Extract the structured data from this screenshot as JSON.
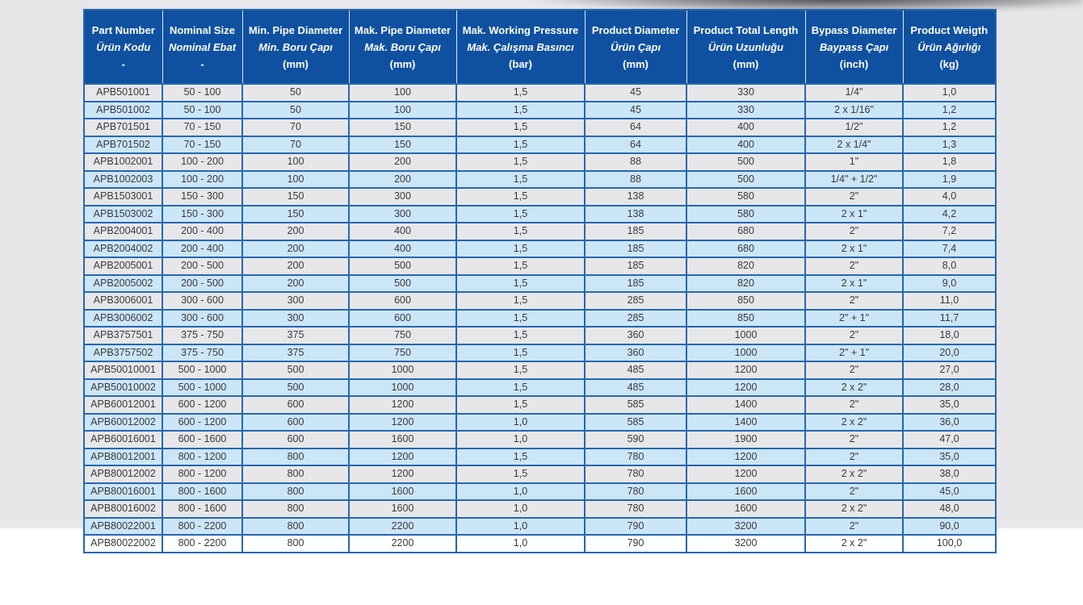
{
  "page": {
    "background_gray": "#e7e7e9",
    "background_white": "#ffffff"
  },
  "table": {
    "colors": {
      "header_bg": "#0f51a0",
      "header_text": "#ffffff",
      "border_blue": "#2767b1",
      "row_alt_blue": "#cbe6f7",
      "cell_text": "#3a3a3c"
    },
    "columns": [
      {
        "key": "part-number",
        "en": "Part Number",
        "tr": "Ürün Kodu",
        "unit": "-"
      },
      {
        "key": "nominal-size",
        "en": "Nominal Size",
        "tr": "Nominal Ebat",
        "unit": "-"
      },
      {
        "key": "min-pipe-diameter",
        "en": "Min. Pipe Diameter",
        "tr": "Min. Boru Çapı",
        "unit": "(mm)"
      },
      {
        "key": "max-pipe-diameter",
        "en": "Mak. Pipe Diameter",
        "tr": "Mak. Boru Çapı",
        "unit": "(mm)"
      },
      {
        "key": "max-working-pressure",
        "en": "Mak. Working Pressure",
        "tr": "Mak. Çalışma Basıncı",
        "unit": "(bar)"
      },
      {
        "key": "product-diameter",
        "en": "Product Diameter",
        "tr": "Ürün Çapı",
        "unit": "(mm)"
      },
      {
        "key": "product-total-length",
        "en": "Product Total Length",
        "tr": "Ürün Uzunluğu",
        "unit": "(mm)"
      },
      {
        "key": "bypass-diameter",
        "en": "Bypass Diameter",
        "tr": "Baypass Çapı",
        "unit": "(inch)"
      },
      {
        "key": "product-weight",
        "en": "Product Weigth",
        "tr": "Ürün Ağırlığı",
        "unit": "(kg)"
      }
    ],
    "rows": [
      [
        "APB501001",
        "50 - 100",
        "50",
        "100",
        "1,5",
        "45",
        "330",
        "1/4\"",
        "1,0"
      ],
      [
        "APB501002",
        "50 - 100",
        "50",
        "100",
        "1,5",
        "45",
        "330",
        "2 x 1/16\"",
        "1,2"
      ],
      [
        "APB701501",
        "70 - 150",
        "70",
        "150",
        "1,5",
        "64",
        "400",
        "1/2\"",
        "1,2"
      ],
      [
        "APB701502",
        "70 - 150",
        "70",
        "150",
        "1,5",
        "64",
        "400",
        "2 x 1/4\"",
        "1,3"
      ],
      [
        "APB1002001",
        "100 - 200",
        "100",
        "200",
        "1,5",
        "88",
        "500",
        "1\"",
        "1,8"
      ],
      [
        "APB1002003",
        "100 - 200",
        "100",
        "200",
        "1,5",
        "88",
        "500",
        "1/4\" + 1/2\"",
        "1,9"
      ],
      [
        "APB1503001",
        "150 - 300",
        "150",
        "300",
        "1,5",
        "138",
        "580",
        "2\"",
        "4,0"
      ],
      [
        "APB1503002",
        "150 - 300",
        "150",
        "300",
        "1,5",
        "138",
        "580",
        "2 x 1\"",
        "4,2"
      ],
      [
        "APB2004001",
        "200 - 400",
        "200",
        "400",
        "1,5",
        "185",
        "680",
        "2\"",
        "7,2"
      ],
      [
        "APB2004002",
        "200 - 400",
        "200",
        "400",
        "1,5",
        "185",
        "680",
        "2 x 1\"",
        "7,4"
      ],
      [
        "APB2005001",
        "200 - 500",
        "200",
        "500",
        "1,5",
        "185",
        "820",
        "2\"",
        "8,0"
      ],
      [
        "APB2005002",
        "200 - 500",
        "200",
        "500",
        "1,5",
        "185",
        "820",
        "2 x 1\"",
        "9,0"
      ],
      [
        "APB3006001",
        "300 - 600",
        "300",
        "600",
        "1,5",
        "285",
        "850",
        "2\"",
        "11,0"
      ],
      [
        "APB3006002",
        "300 - 600",
        "300",
        "600",
        "1,5",
        "285",
        "850",
        "2\" + 1\"",
        "11,7"
      ],
      [
        "APB3757501",
        "375 - 750",
        "375",
        "750",
        "1,5",
        "360",
        "1000",
        "2\"",
        "18,0"
      ],
      [
        "APB3757502",
        "375 - 750",
        "375",
        "750",
        "1,5",
        "360",
        "1000",
        "2\" + 1\"",
        "20,0"
      ],
      [
        "APB50010001",
        "500 - 1000",
        "500",
        "1000",
        "1,5",
        "485",
        "1200",
        "2\"",
        "27,0"
      ],
      [
        "APB50010002",
        "500 - 1000",
        "500",
        "1000",
        "1,5",
        "485",
        "1200",
        "2 x 2\"",
        "28,0"
      ],
      [
        "APB60012001",
        "600 - 1200",
        "600",
        "1200",
        "1,5",
        "585",
        "1400",
        "2\"",
        "35,0"
      ],
      [
        "APB60012002",
        "600 - 1200",
        "600",
        "1200",
        "1,0",
        "585",
        "1400",
        "2 x 2\"",
        "36,0"
      ],
      [
        "APB60016001",
        "600 - 1600",
        "600",
        "1600",
        "1,0",
        "590",
        "1900",
        "2\"",
        "47,0"
      ],
      [
        "APB80012001",
        "800 - 1200",
        "800",
        "1200",
        "1,5",
        "780",
        "1200",
        "2\"",
        "35,0"
      ],
      [
        "APB80012002",
        "800 - 1200",
        "800",
        "1200",
        "1,5",
        "780",
        "1200",
        "2 x 2\"",
        "38,0"
      ],
      [
        "APB80016001",
        "800 - 1600",
        "800",
        "1600",
        "1,0",
        "780",
        "1600",
        "2\"",
        "45,0"
      ],
      [
        "APB80016002",
        "800 - 1600",
        "800",
        "1600",
        "1,0",
        "780",
        "1600",
        "2 x 2\"",
        "48,0"
      ],
      [
        "APB80022001",
        "800 - 2200",
        "800",
        "2200",
        "1,0",
        "790",
        "3200",
        "2\"",
        "90,0"
      ],
      [
        "APB80022002",
        "800 - 2200",
        "800",
        "2200",
        "1,0",
        "790",
        "3200",
        "2 x 2\"",
        "100,0"
      ]
    ]
  }
}
